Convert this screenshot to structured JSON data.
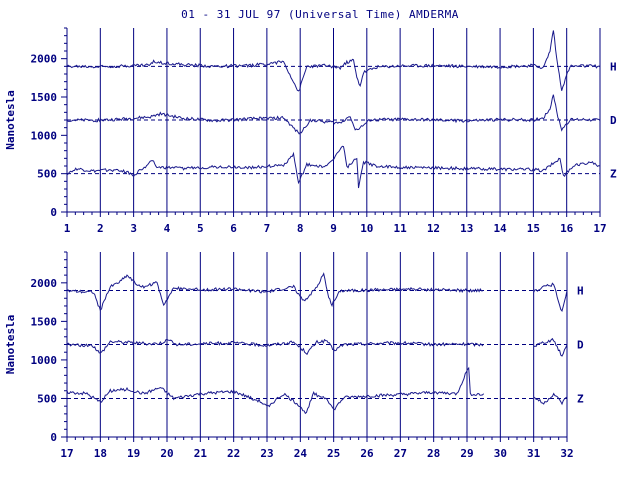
{
  "title": "01 - 31 JUL 97 (Universal Time) AMDERMA",
  "colors": {
    "ink": "#000080",
    "trace": "#1a1a8c",
    "baseline": "#000080"
  },
  "chart_data": [
    {
      "type": "line",
      "title": "01 - 31 JUL 97 (Universal Time) AMDERMA",
      "ylabel": "Nanotesla",
      "xlabel": "",
      "xlim": [
        1,
        17
      ],
      "ylim": [
        0,
        2400
      ],
      "x_ticks": [
        1,
        2,
        3,
        4,
        5,
        6,
        7,
        8,
        9,
        10,
        11,
        12,
        13,
        14,
        15,
        16,
        17
      ],
      "y_ticks": [
        0,
        500,
        1000,
        1500,
        2000
      ],
      "grid": "vertical at each day",
      "series": [
        {
          "name": "H",
          "baseline": 1900,
          "points": [
            [
              1,
              1900
            ],
            [
              1.8,
              1895
            ],
            [
              2.6,
              1905
            ],
            [
              3.5,
              1920
            ],
            [
              3.6,
              1960
            ],
            [
              4.5,
              1920
            ],
            [
              5.5,
              1900
            ],
            [
              6.5,
              1910
            ],
            [
              7.5,
              1960
            ],
            [
              7.8,
              1700
            ],
            [
              7.95,
              1560
            ],
            [
              8.2,
              1900
            ],
            [
              8.8,
              1910
            ],
            [
              9.2,
              1880
            ],
            [
              9.4,
              1950
            ],
            [
              9.6,
              1980
            ],
            [
              9.7,
              1750
            ],
            [
              9.8,
              1650
            ],
            [
              9.9,
              1820
            ],
            [
              10.3,
              1890
            ],
            [
              11,
              1905
            ],
            [
              12,
              1910
            ],
            [
              13,
              1900
            ],
            [
              14,
              1895
            ],
            [
              15,
              1910
            ],
            [
              15.3,
              1880
            ],
            [
              15.5,
              2100
            ],
            [
              15.6,
              2380
            ],
            [
              15.7,
              2000
            ],
            [
              15.85,
              1600
            ],
            [
              16.1,
              1900
            ],
            [
              16.5,
              1905
            ],
            [
              17,
              1900
            ]
          ]
        },
        {
          "name": "D",
          "baseline": 1200,
          "points": [
            [
              1,
              1200
            ],
            [
              1.8,
              1195
            ],
            [
              2.6,
              1210
            ],
            [
              3.5,
              1240
            ],
            [
              3.8,
              1280
            ],
            [
              4.5,
              1220
            ],
            [
              5.5,
              1190
            ],
            [
              6.5,
              1215
            ],
            [
              7.5,
              1230
            ],
            [
              7.9,
              1050
            ],
            [
              8.0,
              1020
            ],
            [
              8.3,
              1200
            ],
            [
              9.2,
              1160
            ],
            [
              9.5,
              1260
            ],
            [
              9.65,
              1070
            ],
            [
              9.8,
              1100
            ],
            [
              10.1,
              1200
            ],
            [
              11,
              1210
            ],
            [
              12,
              1200
            ],
            [
              13,
              1190
            ],
            [
              14,
              1205
            ],
            [
              15,
              1200
            ],
            [
              15.3,
              1230
            ],
            [
              15.5,
              1350
            ],
            [
              15.6,
              1540
            ],
            [
              15.7,
              1300
            ],
            [
              15.85,
              1080
            ],
            [
              16.1,
              1200
            ],
            [
              16.5,
              1210
            ],
            [
              17,
              1200
            ]
          ]
        },
        {
          "name": "Z",
          "baseline": 500,
          "points": [
            [
              1,
              500
            ],
            [
              1.3,
              560
            ],
            [
              1.8,
              530
            ],
            [
              2.3,
              550
            ],
            [
              2.7,
              540
            ],
            [
              2.9,
              500
            ],
            [
              3.0,
              480
            ],
            [
              3.6,
              680
            ],
            [
              3.7,
              580
            ],
            [
              4.5,
              570
            ],
            [
              5.5,
              590
            ],
            [
              6.5,
              580
            ],
            [
              7.5,
              610
            ],
            [
              7.8,
              750
            ],
            [
              7.95,
              370
            ],
            [
              8.2,
              620
            ],
            [
              8.8,
              590
            ],
            [
              9.3,
              870
            ],
            [
              9.4,
              580
            ],
            [
              9.7,
              700
            ],
            [
              9.75,
              310
            ],
            [
              9.9,
              650
            ],
            [
              10.3,
              600
            ],
            [
              11,
              580
            ],
            [
              12,
              575
            ],
            [
              13,
              565
            ],
            [
              14,
              560
            ],
            [
              15,
              555
            ],
            [
              15.3,
              540
            ],
            [
              15.8,
              700
            ],
            [
              15.9,
              470
            ],
            [
              16.2,
              600
            ],
            [
              16.7,
              650
            ],
            [
              17,
              600
            ]
          ]
        }
      ],
      "component_labels": [
        "H",
        "D",
        "Z"
      ]
    },
    {
      "type": "line",
      "title": "",
      "ylabel": "Nanotesla",
      "xlabel": "",
      "xlim": [
        17,
        32
      ],
      "ylim": [
        0,
        2400
      ],
      "x_ticks": [
        17,
        18,
        19,
        20,
        21,
        22,
        23,
        24,
        25,
        26,
        27,
        28,
        29,
        30,
        31,
        32
      ],
      "y_ticks": [
        0,
        500,
        1000,
        1500,
        2000
      ],
      "grid": "vertical at each day",
      "series": [
        {
          "name": "H",
          "baseline": 1900,
          "points": [
            [
              17,
              1900
            ],
            [
              17.8,
              1880
            ],
            [
              18,
              1640
            ],
            [
              18.3,
              1950
            ],
            [
              18.6,
              2020
            ],
            [
              18.8,
              2100
            ],
            [
              19.2,
              1940
            ],
            [
              19.7,
              2000
            ],
            [
              19.9,
              1720
            ],
            [
              20.2,
              1930
            ],
            [
              21,
              1910
            ],
            [
              22,
              1920
            ],
            [
              23,
              1880
            ],
            [
              23.8,
              1950
            ],
            [
              24.1,
              1760
            ],
            [
              24.5,
              1950
            ],
            [
              24.7,
              2120
            ],
            [
              24.85,
              1800
            ],
            [
              24.95,
              1720
            ],
            [
              25.2,
              1900
            ],
            [
              26,
              1905
            ],
            [
              27,
              1920
            ],
            [
              28,
              1910
            ],
            [
              29,
              1900
            ],
            [
              29.4,
              1905
            ],
            [
              31,
              1880
            ],
            [
              31.3,
              1950
            ],
            [
              31.6,
              1980
            ],
            [
              31.85,
              1620
            ],
            [
              32,
              1900
            ]
          ]
        },
        {
          "name": "D",
          "baseline": 1200,
          "points": [
            [
              17,
              1200
            ],
            [
              17.8,
              1180
            ],
            [
              18,
              1080
            ],
            [
              18.3,
              1240
            ],
            [
              18.8,
              1230
            ],
            [
              19.5,
              1210
            ],
            [
              19.8,
              1220
            ],
            [
              20,
              1260
            ],
            [
              20.3,
              1200
            ],
            [
              21,
              1210
            ],
            [
              22,
              1220
            ],
            [
              23,
              1190
            ],
            [
              23.8,
              1230
            ],
            [
              24.2,
              1090
            ],
            [
              24.5,
              1230
            ],
            [
              24.8,
              1250
            ],
            [
              25,
              1120
            ],
            [
              25.3,
              1200
            ],
            [
              26,
              1210
            ],
            [
              27,
              1220
            ],
            [
              28,
              1200
            ],
            [
              29,
              1205
            ],
            [
              29.3,
              1200
            ],
            [
              31,
              1180
            ],
            [
              31.3,
              1230
            ],
            [
              31.6,
              1260
            ],
            [
              31.85,
              1050
            ],
            [
              32,
              1200
            ]
          ]
        },
        {
          "name": "Z",
          "baseline": 500,
          "points": [
            [
              17,
              580
            ],
            [
              17.6,
              560
            ],
            [
              18,
              450
            ],
            [
              18.3,
              600
            ],
            [
              18.8,
              620
            ],
            [
              19.3,
              560
            ],
            [
              19.8,
              640
            ],
            [
              20.2,
              500
            ],
            [
              21,
              560
            ],
            [
              22,
              590
            ],
            [
              22.8,
              460
            ],
            [
              23,
              390
            ],
            [
              23.5,
              560
            ],
            [
              24,
              400
            ],
            [
              24.15,
              300
            ],
            [
              24.4,
              560
            ],
            [
              24.8,
              500
            ],
            [
              25,
              350
            ],
            [
              25.3,
              510
            ],
            [
              26,
              530
            ],
            [
              27,
              550
            ],
            [
              28,
              580
            ],
            [
              28.7,
              560
            ],
            [
              29.05,
              910
            ],
            [
              29.1,
              560
            ],
            [
              29.5,
              550
            ],
            [
              31,
              520
            ],
            [
              31.3,
              430
            ],
            [
              31.6,
              560
            ],
            [
              31.85,
              440
            ],
            [
              32,
              520
            ]
          ]
        }
      ],
      "gaps": [
        [
          29.5,
          31
        ]
      ],
      "component_labels": [
        "H",
        "D",
        "Z"
      ]
    }
  ]
}
